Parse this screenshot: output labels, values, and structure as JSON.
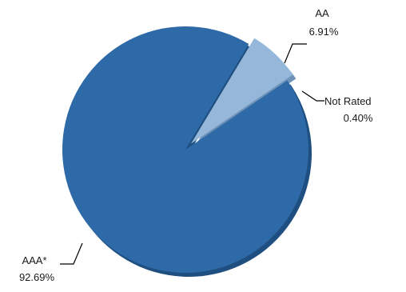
{
  "chart_data": {
    "type": "pie",
    "title": "",
    "slices": [
      {
        "label": "AAA*",
        "display_value": "92.69%",
        "value": 92.69,
        "color": "#2e6aa7",
        "shadow": "#1f4f80"
      },
      {
        "label": "AA",
        "display_value": "6.91%",
        "value": 6.91,
        "color": "#95b8da",
        "shadow": "#6f93b8"
      },
      {
        "label": "Not Rated",
        "display_value": "0.40%",
        "value": 0.4,
        "color": "#2e6aa7",
        "shadow": "#1f4f80"
      }
    ],
    "legend": "none",
    "labels": "outside-with-leader-lines"
  }
}
